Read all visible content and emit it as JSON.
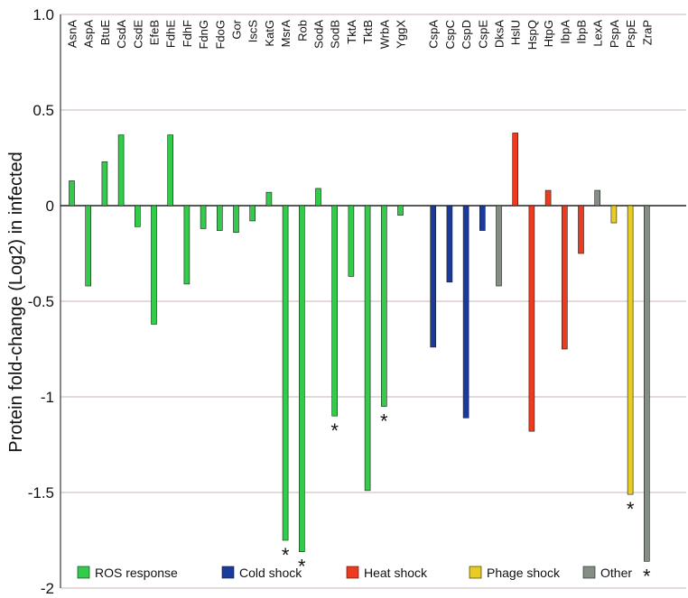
{
  "chart_data": {
    "type": "bar",
    "title": "",
    "xlabel": "",
    "ylabel": "Protein fold-change (Log2) in infected",
    "ylim": [
      -2,
      1
    ],
    "yticks": [
      1.0,
      0.5,
      0,
      -0.5,
      -1,
      -1.5,
      -2
    ],
    "ytick_labels": [
      "1.0",
      "0.5",
      "0",
      "-0.5",
      "-1",
      "-1.5",
      "-2"
    ],
    "grid": true,
    "legend_position": "bottom",
    "groups": [
      {
        "name": "ROS response",
        "color": "#33cc4a"
      },
      {
        "name": "Cold shock",
        "color": "#1a3a9c"
      },
      {
        "name": "Heat shock",
        "color": "#ee3a1e"
      },
      {
        "name": "Phage shock",
        "color": "#e8cc22"
      },
      {
        "name": "Other",
        "color": "#858e85"
      }
    ],
    "bars": [
      {
        "category": "AsnA",
        "value": 0.13,
        "group": "ROS response",
        "significant": false
      },
      {
        "category": "AspA",
        "value": -0.42,
        "group": "ROS response",
        "significant": false
      },
      {
        "category": "BtuE",
        "value": 0.23,
        "group": "ROS response",
        "significant": false
      },
      {
        "category": "CsdA",
        "value": 0.37,
        "group": "ROS response",
        "significant": false
      },
      {
        "category": "CsdE",
        "value": -0.11,
        "group": "ROS response",
        "significant": false
      },
      {
        "category": "EfeB",
        "value": -0.62,
        "group": "ROS response",
        "significant": false
      },
      {
        "category": "FdhE",
        "value": 0.37,
        "group": "ROS response",
        "significant": false
      },
      {
        "category": "FdhF",
        "value": -0.41,
        "group": "ROS response",
        "significant": false
      },
      {
        "category": "FdnG",
        "value": -0.12,
        "group": "ROS response",
        "significant": false
      },
      {
        "category": "FdoG",
        "value": -0.13,
        "group": "ROS response",
        "significant": false
      },
      {
        "category": "Gor",
        "value": -0.14,
        "group": "ROS response",
        "significant": false
      },
      {
        "category": "IscS",
        "value": -0.08,
        "group": "ROS response",
        "significant": false
      },
      {
        "category": "KatG",
        "value": 0.07,
        "group": "ROS response",
        "significant": false
      },
      {
        "category": "MsrA",
        "value": -1.75,
        "group": "ROS response",
        "significant": true
      },
      {
        "category": "Rob",
        "value": -1.81,
        "group": "ROS response",
        "significant": true
      },
      {
        "category": "SodA",
        "value": 0.09,
        "group": "ROS response",
        "significant": false
      },
      {
        "category": "SodB",
        "value": -1.1,
        "group": "ROS response",
        "significant": true
      },
      {
        "category": "TktA",
        "value": -0.37,
        "group": "ROS response",
        "significant": false
      },
      {
        "category": "TktB",
        "value": -1.49,
        "group": "ROS response",
        "significant": false
      },
      {
        "category": "WrbA",
        "value": -1.05,
        "group": "ROS response",
        "significant": true
      },
      {
        "category": "YggX",
        "value": -0.05,
        "group": "ROS response",
        "significant": false
      },
      {
        "category": "CspA",
        "value": -0.74,
        "group": "Cold shock",
        "significant": false
      },
      {
        "category": "CspC",
        "value": -0.4,
        "group": "Cold shock",
        "significant": false
      },
      {
        "category": "CspD",
        "value": -1.11,
        "group": "Cold shock",
        "significant": false
      },
      {
        "category": "CspE",
        "value": -0.13,
        "group": "Cold shock",
        "significant": false
      },
      {
        "category": "DksA",
        "value": -0.42,
        "group": "Other",
        "significant": false
      },
      {
        "category": "HslU",
        "value": 0.38,
        "group": "Heat shock",
        "significant": false
      },
      {
        "category": "HspQ",
        "value": -1.18,
        "group": "Heat shock",
        "significant": false
      },
      {
        "category": "HtpG",
        "value": 0.08,
        "group": "Heat shock",
        "significant": false
      },
      {
        "category": "IbpA",
        "value": -0.75,
        "group": "Heat shock",
        "significant": false
      },
      {
        "category": "IbpB",
        "value": -0.25,
        "group": "Heat shock",
        "significant": false
      },
      {
        "category": "LexA",
        "value": 0.08,
        "group": "Other",
        "significant": false
      },
      {
        "category": "PspA",
        "value": -0.09,
        "group": "Phage shock",
        "significant": false
      },
      {
        "category": "PspE",
        "value": -1.51,
        "group": "Phage shock",
        "significant": true
      },
      {
        "category": "ZraP",
        "value": -1.86,
        "group": "Other",
        "significant": true
      }
    ],
    "significance_marker": "*"
  }
}
